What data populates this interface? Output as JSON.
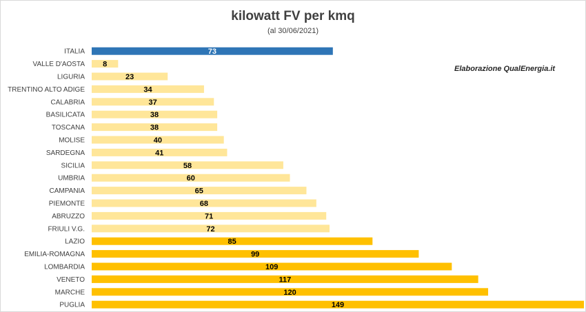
{
  "title": "kilowatt FV per kmq",
  "subtitle": "(al 30/06/2021)",
  "credit": "Elaborazione QualEnergia.it",
  "colors": {
    "italia": "#2e75b6",
    "light": "#ffe699",
    "medium": "#ffd966",
    "dark": "#ffc000",
    "italia_label": "#ffffff",
    "label": "#000000"
  },
  "chart_data": {
    "type": "bar",
    "orientation": "horizontal",
    "categories": [
      "ITALIA",
      "VALLE D'AOSTA",
      "LIGURIA",
      "TRENTINO ALTO ADIGE",
      "CALABRIA",
      "BASILICATA",
      "TOSCANA",
      "MOLISE",
      "SARDEGNA",
      "SICILIA",
      "UMBRIA",
      "CAMPANIA",
      "PIEMONTE",
      "ABRUZZO",
      "FRIULI V.G.",
      "LAZIO",
      "EMILIA-ROMAGNA",
      "LOMBARDIA",
      "VENETO",
      "MARCHE",
      "PUGLIA"
    ],
    "values": [
      73,
      8,
      23,
      34,
      37,
      38,
      38,
      40,
      41,
      58,
      60,
      65,
      68,
      71,
      72,
      85,
      99,
      109,
      117,
      120,
      149
    ],
    "color_groups": [
      "italia",
      "light",
      "light",
      "light",
      "light",
      "light",
      "light",
      "light",
      "light",
      "light",
      "light",
      "light",
      "light",
      "light",
      "light",
      "dark",
      "dark",
      "dark",
      "dark",
      "dark",
      "dark"
    ],
    "title": "kilowatt FV per kmq",
    "subtitle": "(al 30/06/2021)",
    "xlim": [
      0,
      149
    ],
    "grid": false,
    "legend": "none",
    "data_labels": true
  }
}
